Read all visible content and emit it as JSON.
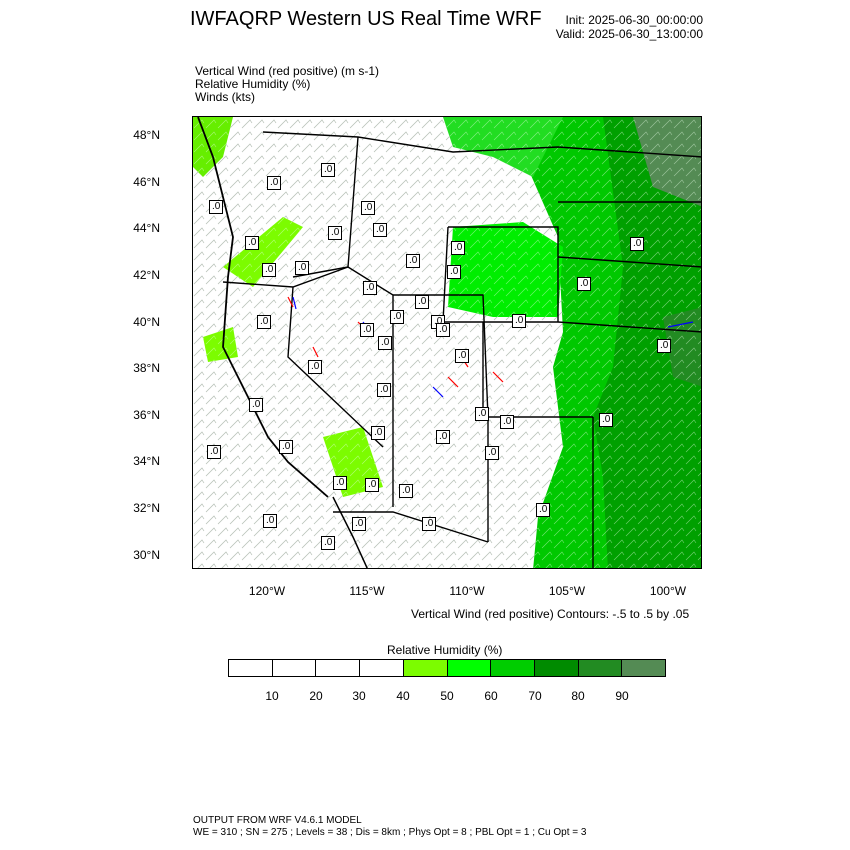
{
  "title": "IWFAQRP Western US Real Time WRF",
  "init": "Init: 2025-06-30_00:00:00",
  "valid": "Valid: 2025-06-30_13:00:00",
  "fields": [
    "Vertical Wind (red positive)   (m s-1)",
    "Relative Humidity   (%)",
    "Winds   (kts)"
  ],
  "map": {
    "lat_labels": [
      "48°N",
      "46°N",
      "44°N",
      "42°N",
      "40°N",
      "38°N",
      "36°N",
      "34°N",
      "32°N",
      "30°N"
    ],
    "lon_labels": [
      "120°W",
      "115°W",
      "110°W",
      "105°W",
      "100°W"
    ],
    "contour_labels": [
      ".0",
      ".0",
      ".0",
      ".0",
      ".0",
      ".0",
      ".0",
      ".0",
      ".0",
      ".0",
      ".0",
      ".0",
      ".0",
      ".0",
      ".0",
      ".0",
      ".0",
      ".0",
      ".0",
      ".0",
      ".0",
      ".0",
      ".0",
      ".0",
      ".0",
      ".0",
      ".0",
      ".0",
      ".0",
      ".0",
      ".0",
      ".0",
      ".0",
      ".0",
      ".0",
      ".0",
      ".0",
      ".0",
      ".0",
      ".0",
      ".0",
      ".0",
      ".0",
      ".0"
    ]
  },
  "contour_note": "Vertical Wind (red positive) Contours: -.5 to .5 by .05",
  "colorbar": {
    "title": "Relative Humidity  (%)",
    "labels": [
      "10",
      "20",
      "30",
      "40",
      "50",
      "60",
      "70",
      "80",
      "90"
    ],
    "colors": [
      "#ffffff",
      "#ffffff",
      "#ffffff",
      "#ffffff",
      "#7cfc00",
      "#00ff00",
      "#00cd00",
      "#008b00",
      "#228b22",
      "#548b54"
    ]
  },
  "footer": {
    "line1": "OUTPUT FROM WRF V4.6.1 MODEL",
    "line2": "WE = 310 ; SN = 275 ; Levels = 38 ; Dis = 8km ; Phys Opt = 8 ; PBL Opt = 1 ; Cu Opt = 3"
  }
}
